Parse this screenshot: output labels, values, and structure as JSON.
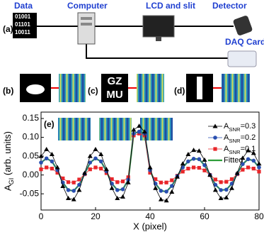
{
  "diagram": {
    "panel_a": "(a)",
    "data_label": "Data",
    "bits": [
      "01001",
      "01101",
      "10011"
    ],
    "computer": "Computer",
    "lcd": "LCD and slit",
    "detector": "Detector",
    "daq": "DAQ Card",
    "panel_b": "(b)",
    "panel_c": "(c)",
    "panel_d": "(d)",
    "logo": [
      "GZ",
      "MU"
    ]
  },
  "chart_data": {
    "type": "line",
    "panel_label": "(e)",
    "x_label": "X (pixel)",
    "y_label": "AGI (arb. units)",
    "x": [
      0,
      2,
      4,
      6,
      8,
      10,
      12,
      14,
      16,
      18,
      20,
      22,
      24,
      26,
      28,
      30,
      32,
      34,
      36,
      38,
      40,
      42,
      44,
      46,
      48,
      50,
      52,
      54,
      56,
      58,
      60,
      62,
      64,
      66,
      68,
      70,
      72,
      74,
      76,
      78,
      80
    ],
    "series": [
      {
        "name": "ASNR=0.3",
        "color": "#000000",
        "marker": "triangle",
        "values": [
          0.05,
          0.068,
          0.055,
          0.02,
          -0.03,
          -0.062,
          -0.065,
          -0.04,
          0.005,
          0.05,
          0.068,
          0.055,
          0.015,
          -0.035,
          -0.062,
          -0.058,
          -0.02,
          0.12,
          0.13,
          0.115,
          0.02,
          -0.035,
          -0.065,
          -0.068,
          -0.045,
          -0.005,
          0.03,
          0.055,
          0.066,
          0.064,
          0.04,
          0.0,
          -0.04,
          -0.062,
          -0.06,
          -0.035,
          0.005,
          0.045,
          0.065,
          0.058,
          0.03
        ]
      },
      {
        "name": "ASNR=0.2",
        "color": "#2a4fb0",
        "marker": "circle",
        "values": [
          0.033,
          0.044,
          0.036,
          0.013,
          -0.02,
          -0.04,
          -0.042,
          -0.026,
          0.003,
          0.033,
          0.044,
          0.036,
          0.01,
          -0.023,
          -0.04,
          -0.038,
          -0.013,
          0.11,
          0.115,
          0.11,
          0.013,
          -0.023,
          -0.042,
          -0.044,
          -0.029,
          -0.003,
          0.02,
          0.036,
          0.043,
          0.042,
          0.026,
          0.0,
          -0.026,
          -0.04,
          -0.039,
          -0.023,
          0.003,
          0.029,
          0.042,
          0.038,
          0.02
        ]
      },
      {
        "name": "ASNR=0.1",
        "color": "#e8262a",
        "marker": "square",
        "values": [
          0.015,
          0.02,
          0.017,
          0.006,
          -0.009,
          -0.019,
          -0.02,
          -0.012,
          0.002,
          0.015,
          0.02,
          0.017,
          0.005,
          -0.011,
          -0.019,
          -0.017,
          -0.006,
          0.105,
          0.11,
          0.105,
          0.006,
          -0.011,
          -0.02,
          -0.02,
          -0.014,
          -0.002,
          0.009,
          0.017,
          0.02,
          0.019,
          0.012,
          0.0,
          -0.012,
          -0.019,
          -0.018,
          -0.011,
          0.002,
          0.014,
          0.02,
          0.017,
          0.009
        ]
      },
      {
        "name": "Fitted",
        "color": "#2e9e3a",
        "marker": "none",
        "values": [
          0.033,
          0.044,
          0.036,
          0.013,
          -0.02,
          -0.04,
          -0.042,
          -0.026,
          0.003,
          0.033,
          0.044,
          0.036,
          0.01,
          -0.023,
          -0.04,
          -0.038,
          -0.013,
          0.11,
          0.115,
          0.11,
          0.013,
          -0.023,
          -0.042,
          -0.044,
          -0.029,
          -0.003,
          0.02,
          0.036,
          0.043,
          0.042,
          0.026,
          0.0,
          -0.026,
          -0.04,
          -0.039,
          -0.023,
          0.003,
          0.029,
          0.042,
          0.038,
          0.02
        ]
      }
    ],
    "xlim": [
      0,
      80
    ],
    "ylim": [
      -0.093,
      0.167
    ],
    "xticks": [
      0,
      20,
      40,
      60,
      80
    ],
    "yticks": [
      -0.05,
      {
        "value": 0,
        "label": "0.00"
      },
      0.05,
      {
        "value": 0.1,
        "label": "0.10"
      },
      0.15
    ],
    "legend": "upper right"
  }
}
